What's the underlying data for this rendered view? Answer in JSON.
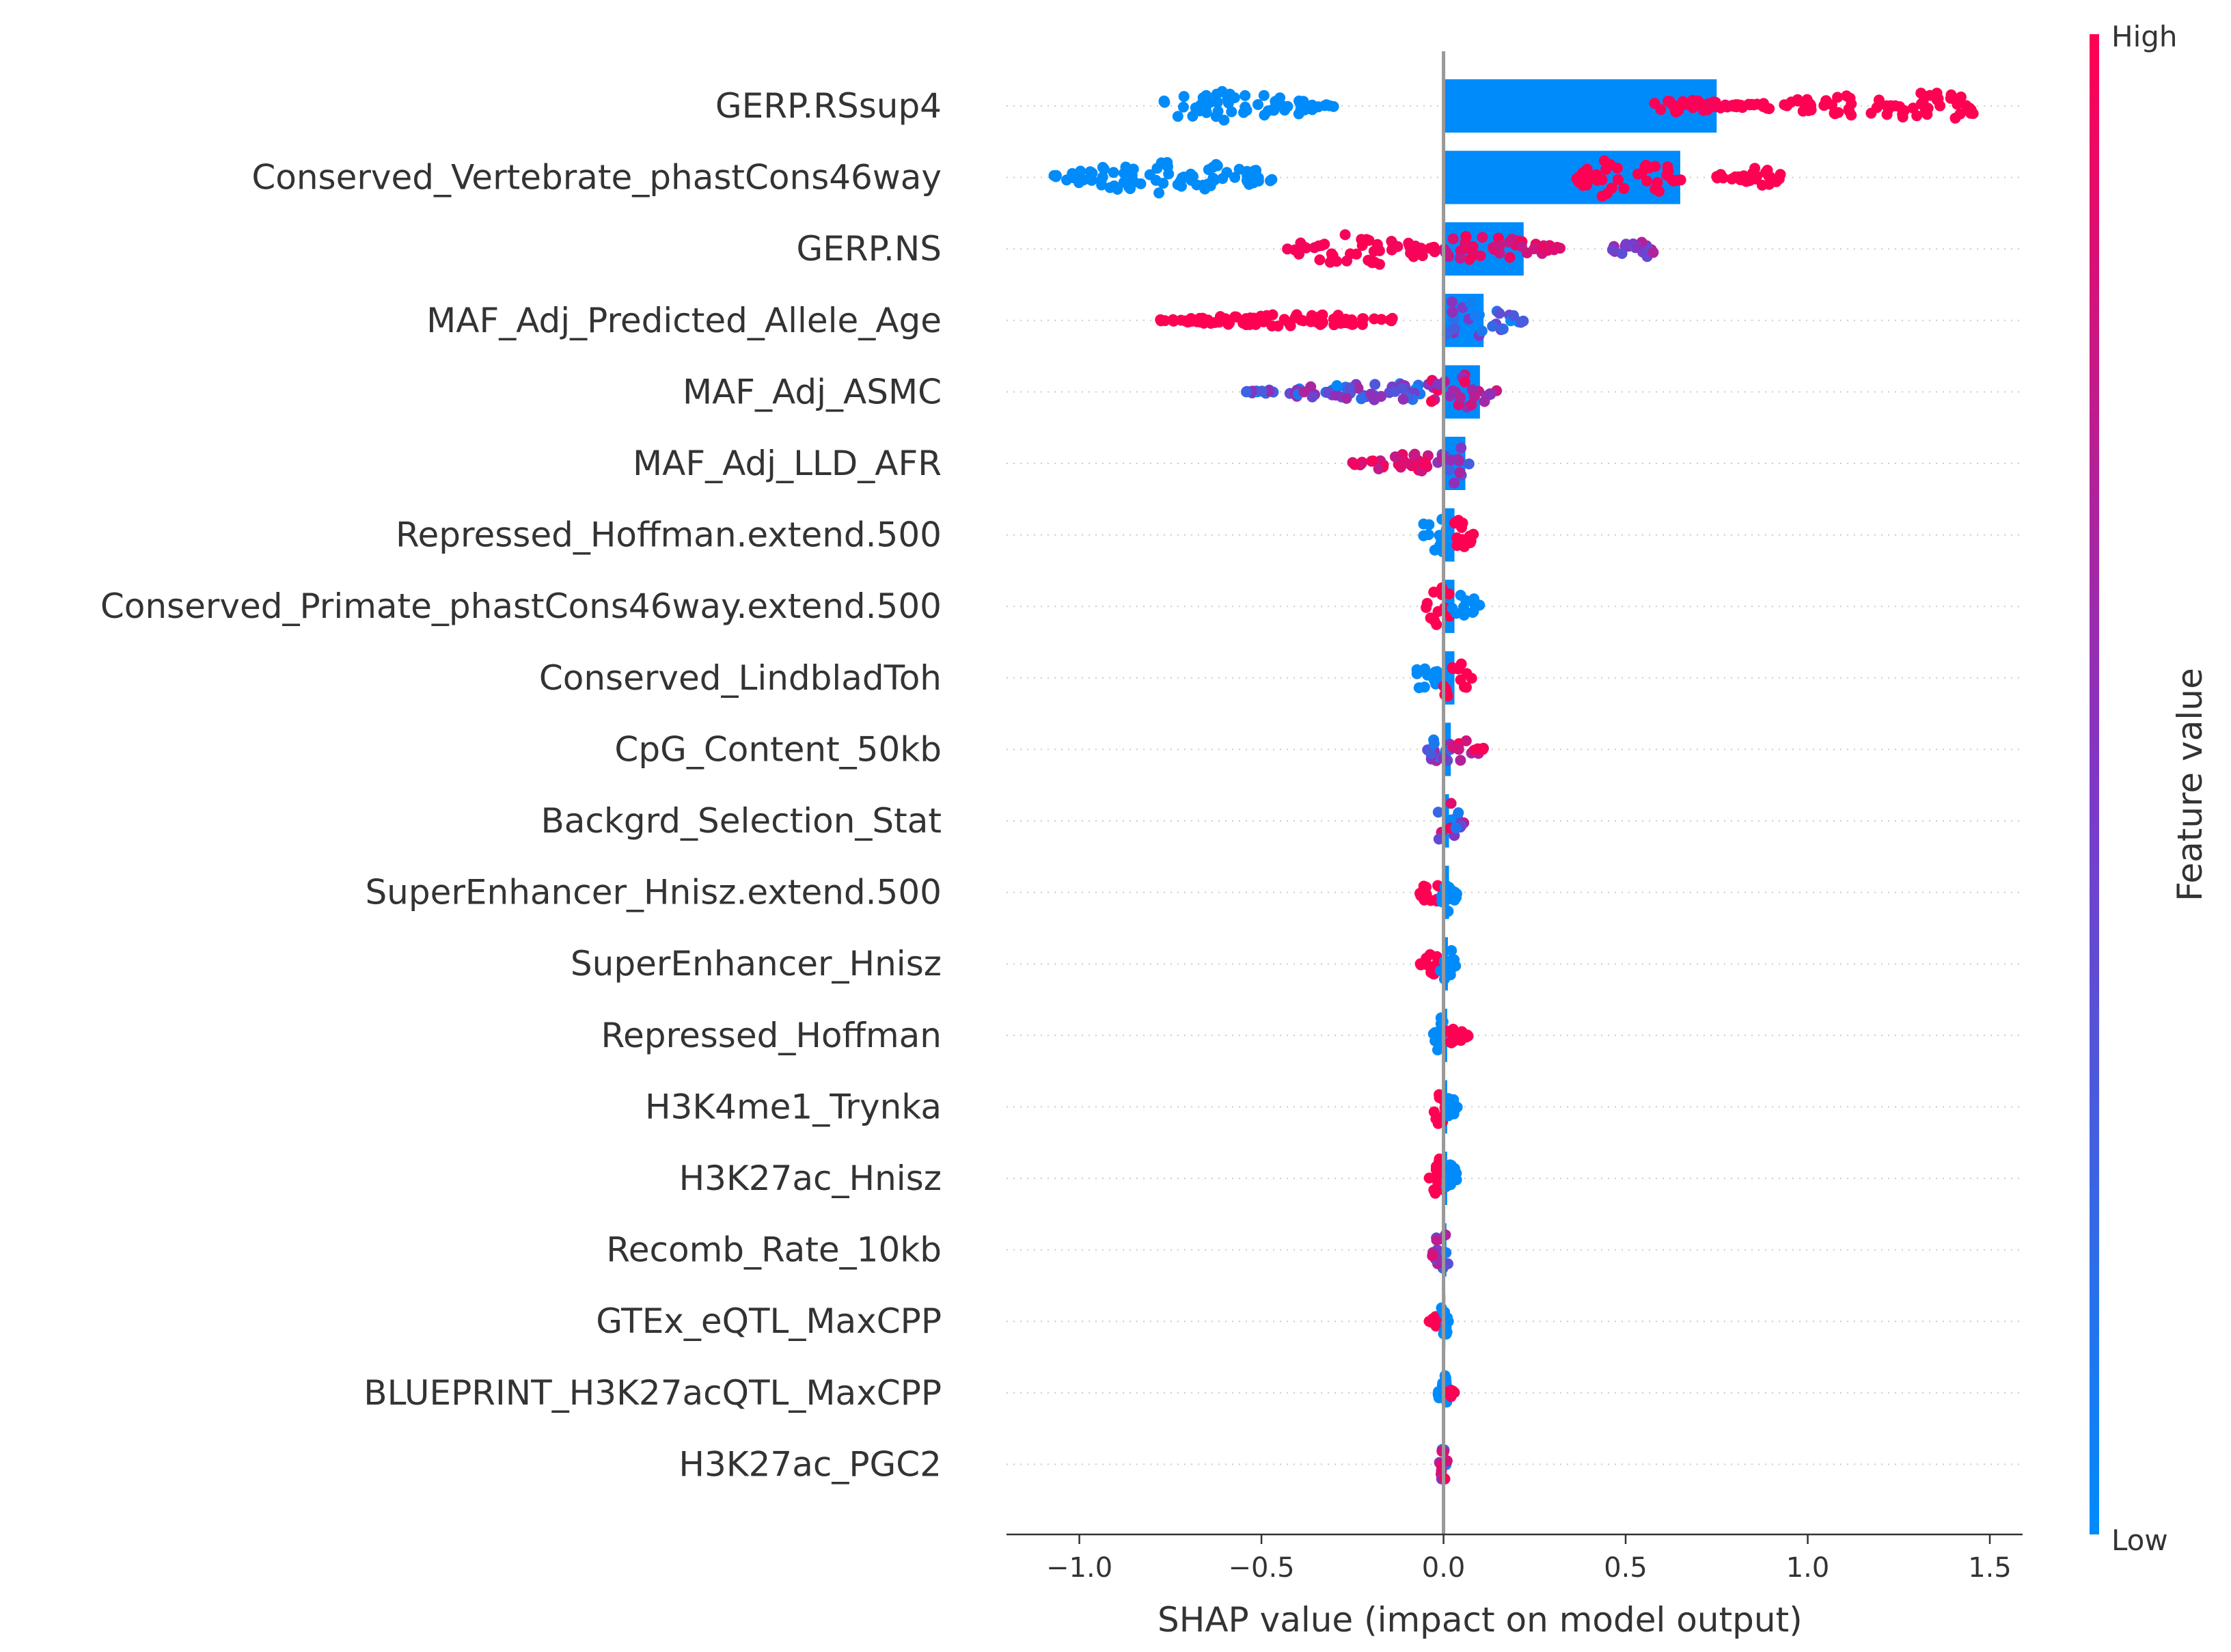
{
  "chart_data": {
    "type": "scatter",
    "subtype": "shap-beeswarm-with-mean-bar",
    "xlabel": "SHAP value (impact on model output)",
    "xlim": [
      -1.2,
      1.59
    ],
    "xticks": [
      "−1.0",
      "−0.5",
      "0.0",
      "0.5",
      "1.0",
      "1.5"
    ],
    "xtick_values": [
      -1.0,
      -0.5,
      0.0,
      0.5,
      1.0,
      1.5
    ],
    "grid": "dotted horizontal row guides",
    "colorbar": {
      "title": "Feature value",
      "high_label": "High",
      "low_label": "Low",
      "low_color": "#008bfb",
      "mid_color": "#7f38c8",
      "high_color": "#ff0052"
    },
    "bar_color": "#008bfb",
    "zero_line_color": "#999999",
    "features": [
      {
        "name": "GERP.RSsup4",
        "mean_bar": 0.75,
        "clusters": [
          {
            "x": [
              -0.77,
              -0.3
            ],
            "peak": -0.6,
            "width": 0.55,
            "c": [
              0.0,
              0.0
            ]
          },
          {
            "x": [
              0.57,
              0.8
            ],
            "peak": 0.65,
            "width": 0.25,
            "c": [
              0.95,
              1.0
            ]
          },
          {
            "x": [
              0.8,
              1.46
            ],
            "peak": 1.35,
            "width": 0.5,
            "c": [
              1.0,
              1.0
            ]
          }
        ]
      },
      {
        "name": "Conserved_Vertebrate_phastCons46way",
        "mean_bar": 0.65,
        "clusters": [
          {
            "x": [
              -1.07,
              -0.47
            ],
            "peak": -0.75,
            "width": 0.6,
            "c": [
              0.0,
              0.0
            ]
          },
          {
            "x": [
              0.36,
              0.66
            ],
            "peak": 0.5,
            "width": 0.85,
            "c": [
              1.0,
              1.0
            ]
          },
          {
            "x": [
              0.74,
              0.93
            ],
            "peak": 0.85,
            "width": 0.35,
            "c": [
              1.0,
              1.0
            ]
          }
        ]
      },
      {
        "name": "GERP.NS",
        "mean_bar": 0.22,
        "clusters": [
          {
            "x": [
              -0.43,
              0.0
            ],
            "peak": -0.22,
            "width": 0.65,
            "c": [
              0.95,
              1.0
            ]
          },
          {
            "x": [
              0.0,
              0.33
            ],
            "peak": 0.05,
            "width": 0.5,
            "c": [
              0.75,
              1.0
            ]
          },
          {
            "x": [
              0.45,
              0.58
            ],
            "peak": 0.55,
            "width": 0.3,
            "c": [
              0.3,
              0.7
            ]
          }
        ]
      },
      {
        "name": "MAF_Adj_Predicted_Allele_Age",
        "mean_bar": 0.11,
        "clusters": [
          {
            "x": [
              -0.78,
              -0.14
            ],
            "peak": -0.4,
            "width": 0.22,
            "c": [
              1.0,
              1.0
            ]
          },
          {
            "x": [
              0.0,
              0.22
            ],
            "peak": 0.03,
            "width": 0.7,
            "c": [
              0.0,
              0.6
            ]
          }
        ]
      },
      {
        "name": "MAF_Adj_ASMC",
        "mean_bar": 0.1,
        "clusters": [
          {
            "x": [
              -0.55,
              -0.05
            ],
            "peak": -0.1,
            "width": 0.32,
            "c": [
              0.0,
              0.7
            ]
          },
          {
            "x": [
              -0.05,
              0.15
            ],
            "peak": 0.03,
            "width": 0.7,
            "c": [
              0.5,
              1.0
            ]
          }
        ]
      },
      {
        "name": "MAF_Adj_LLD_AFR",
        "mean_bar": 0.06,
        "clusters": [
          {
            "x": [
              -0.25,
              -0.02
            ],
            "peak": -0.05,
            "width": 0.38,
            "c": [
              0.75,
              1.0
            ]
          },
          {
            "x": [
              -0.02,
              0.07
            ],
            "peak": 0.03,
            "width": 0.75,
            "c": [
              0.25,
              0.75
            ]
          }
        ]
      },
      {
        "name": "Repressed_Hoffman.extend.500",
        "mean_bar": 0.03,
        "clusters": [
          {
            "x": [
              -0.06,
              0.03
            ],
            "peak": -0.02,
            "width": 0.8,
            "c": [
              0.0,
              0.0
            ]
          },
          {
            "x": [
              0.03,
              0.09
            ],
            "peak": 0.04,
            "width": 0.55,
            "c": [
              1.0,
              1.0
            ]
          }
        ]
      },
      {
        "name": "Conserved_Primate_phastCons46way.extend.500",
        "mean_bar": 0.03,
        "clusters": [
          {
            "x": [
              -0.05,
              0.02
            ],
            "peak": -0.01,
            "width": 0.8,
            "c": [
              1.0,
              1.0
            ]
          },
          {
            "x": [
              0.02,
              0.1
            ],
            "peak": 0.06,
            "width": 0.5,
            "c": [
              0.0,
              0.0
            ]
          }
        ]
      },
      {
        "name": "Conserved_LindbladToh",
        "mean_bar": 0.03,
        "clusters": [
          {
            "x": [
              -0.08,
              0.0
            ],
            "peak": -0.05,
            "width": 0.45,
            "c": [
              0.0,
              0.0
            ]
          },
          {
            "x": [
              0.0,
              0.08
            ],
            "peak": 0.02,
            "width": 0.75,
            "c": [
              1.0,
              1.0
            ]
          }
        ]
      },
      {
        "name": "CpG_Content_50kb",
        "mean_bar": 0.02,
        "clusters": [
          {
            "x": [
              -0.05,
              0.02
            ],
            "peak": -0.01,
            "width": 0.6,
            "c": [
              0.0,
              0.7
            ]
          },
          {
            "x": [
              0.02,
              0.11
            ],
            "peak": 0.05,
            "width": 0.45,
            "c": [
              0.6,
              1.0
            ]
          }
        ]
      },
      {
        "name": "Backgrd_Selection_Stat",
        "mean_bar": 0.015,
        "clusters": [
          {
            "x": [
              -0.04,
              0.06
            ],
            "peak": 0.0,
            "width": 0.75,
            "c": [
              0.0,
              1.0
            ]
          }
        ]
      },
      {
        "name": "SuperEnhancer_Hnisz.extend.500",
        "mean_bar": 0.015,
        "clusters": [
          {
            "x": [
              -0.07,
              -0.01
            ],
            "peak": -0.03,
            "width": 0.45,
            "c": [
              1.0,
              1.0
            ]
          },
          {
            "x": [
              -0.01,
              0.04
            ],
            "peak": 0.01,
            "width": 0.75,
            "c": [
              0.0,
              0.0
            ]
          }
        ]
      },
      {
        "name": "SuperEnhancer_Hnisz",
        "mean_bar": 0.012,
        "clusters": [
          {
            "x": [
              -0.07,
              -0.01
            ],
            "peak": -0.03,
            "width": 0.42,
            "c": [
              1.0,
              1.0
            ]
          },
          {
            "x": [
              -0.01,
              0.035
            ],
            "peak": 0.005,
            "width": 0.75,
            "c": [
              0.0,
              0.0
            ]
          }
        ]
      },
      {
        "name": "Repressed_Hoffman",
        "mean_bar": 0.01,
        "clusters": [
          {
            "x": [
              -0.03,
              0.01
            ],
            "peak": -0.01,
            "width": 0.7,
            "c": [
              0.0,
              0.0
            ]
          },
          {
            "x": [
              0.01,
              0.07
            ],
            "peak": 0.02,
            "width": 0.3,
            "c": [
              1.0,
              1.0
            ]
          }
        ]
      },
      {
        "name": "H3K4me1_Trynka",
        "mean_bar": 0.01,
        "clusters": [
          {
            "x": [
              -0.03,
              0.005
            ],
            "peak": -0.01,
            "width": 0.7,
            "c": [
              1.0,
              1.0
            ]
          },
          {
            "x": [
              0.005,
              0.04
            ],
            "peak": 0.01,
            "width": 0.45,
            "c": [
              0.0,
              0.0
            ]
          }
        ]
      },
      {
        "name": "H3K27ac_Hnisz",
        "mean_bar": 0.01,
        "clusters": [
          {
            "x": [
              -0.04,
              0.005
            ],
            "peak": -0.01,
            "width": 0.75,
            "c": [
              1.0,
              1.0
            ]
          },
          {
            "x": [
              0.005,
              0.04
            ],
            "peak": 0.01,
            "width": 0.7,
            "c": [
              0.0,
              0.0
            ]
          }
        ]
      },
      {
        "name": "Recomb_Rate_10kb",
        "mean_bar": 0.008,
        "clusters": [
          {
            "x": [
              -0.04,
              0.02
            ],
            "peak": 0.0,
            "width": 0.7,
            "c": [
              0.0,
              1.0
            ]
          }
        ]
      },
      {
        "name": "GTEx_eQTL_MaxCPP",
        "mean_bar": 0.005,
        "clusters": [
          {
            "x": [
              -0.04,
              -0.005
            ],
            "peak": -0.02,
            "width": 0.2,
            "c": [
              1.0,
              1.0
            ]
          },
          {
            "x": [
              -0.008,
              0.015
            ],
            "peak": 0.0,
            "width": 0.75,
            "c": [
              0.0,
              0.0
            ]
          }
        ]
      },
      {
        "name": "BLUEPRINT_H3K27acQTL_MaxCPP",
        "mean_bar": 0.004,
        "clusters": [
          {
            "x": [
              -0.015,
              0.01
            ],
            "peak": 0.0,
            "width": 0.75,
            "c": [
              0.0,
              0.0
            ]
          },
          {
            "x": [
              0.01,
              0.03
            ],
            "peak": 0.02,
            "width": 0.15,
            "c": [
              0.9,
              1.0
            ]
          }
        ]
      },
      {
        "name": "H3K27ac_PGC2",
        "mean_bar": 0.003,
        "clusters": [
          {
            "x": [
              -0.012,
              0.012
            ],
            "peak": 0.0,
            "width": 0.75,
            "c": [
              0.0,
              1.0
            ]
          }
        ]
      }
    ]
  }
}
